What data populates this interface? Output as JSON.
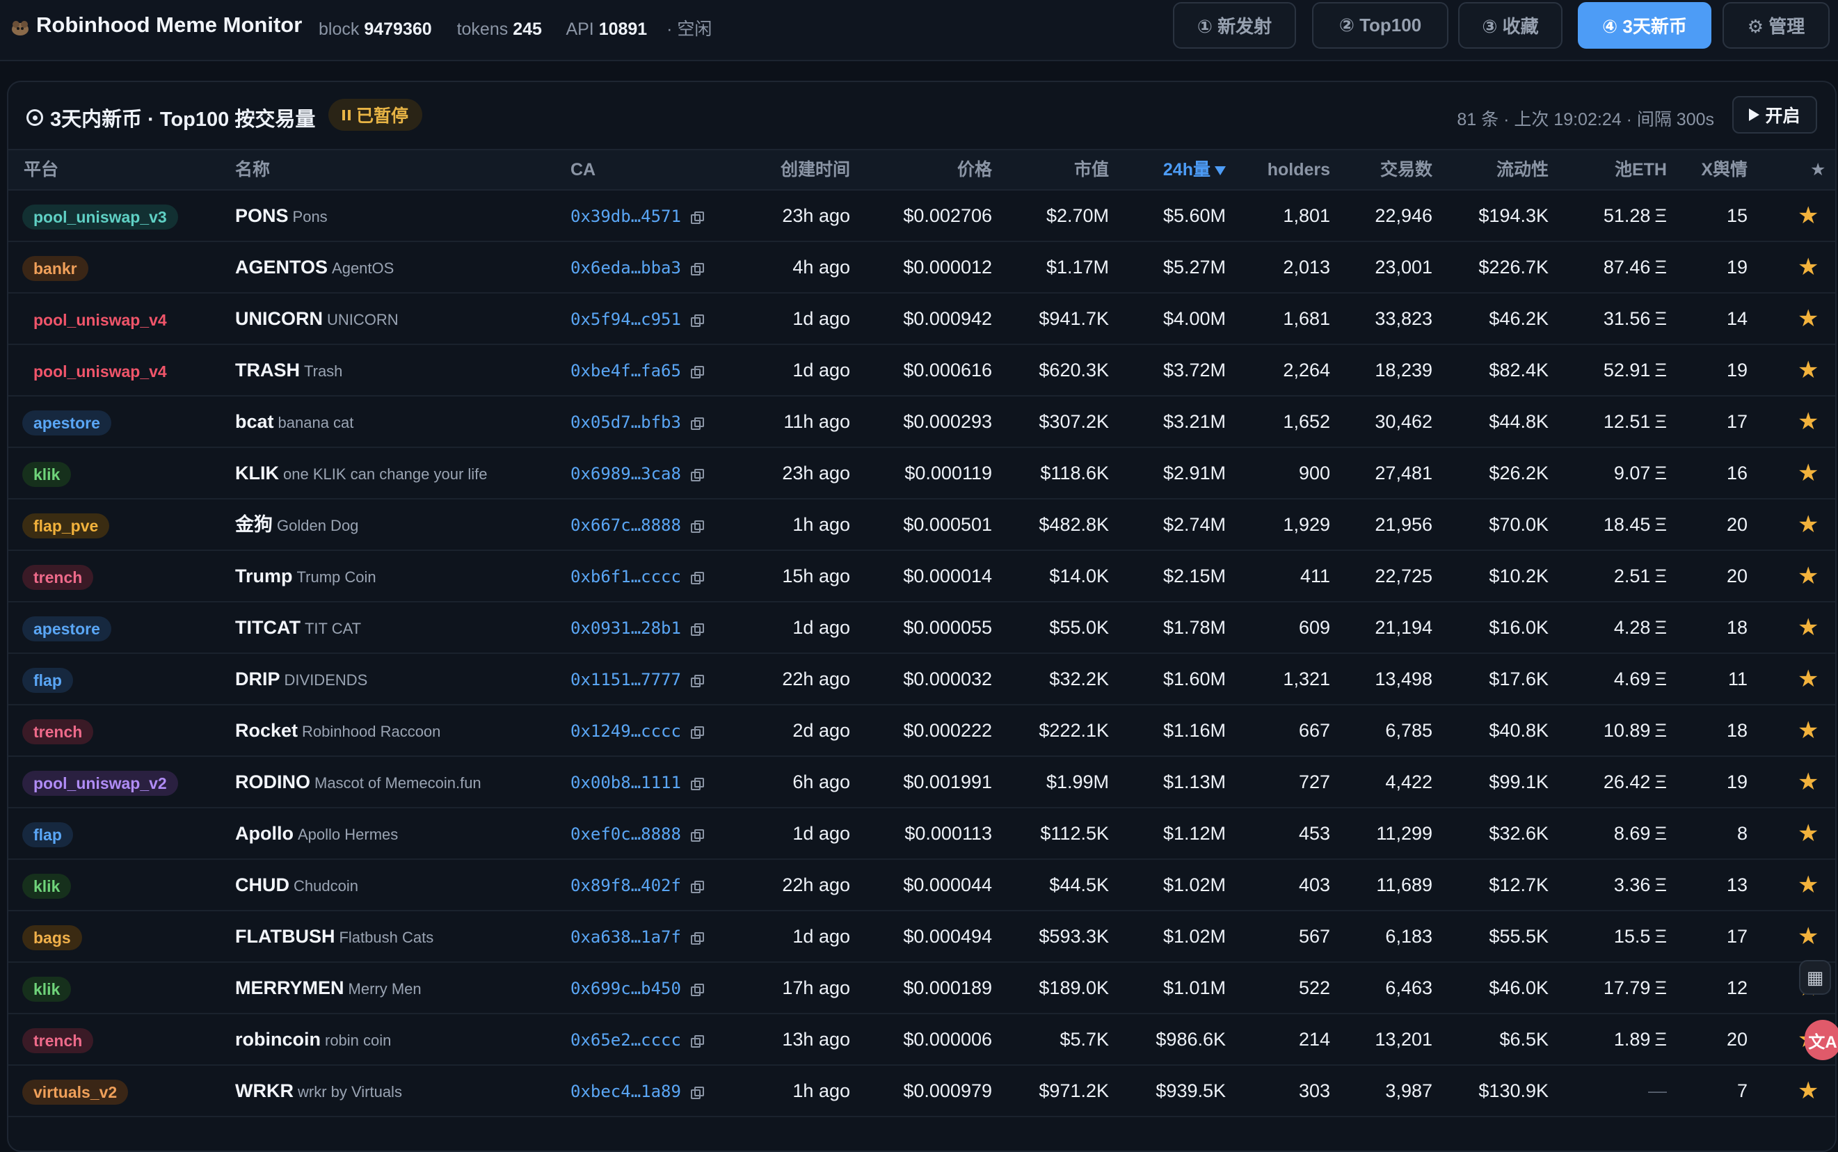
{
  "header": {
    "title": "Robinhood Meme Monitor",
    "block_label": "block",
    "block_value": "9479360",
    "tokens_label": "tokens",
    "tokens_value": "245",
    "api_label": "API",
    "api_value": "10891",
    "status": "· 空闲",
    "tabs": [
      {
        "label": "① 新发射",
        "active": false
      },
      {
        "label": "② Top100",
        "active": false
      },
      {
        "label": "③ 收藏",
        "active": false
      },
      {
        "label": "④ 3天新币",
        "active": true
      },
      {
        "label": "⚙ 管理",
        "active": false
      }
    ]
  },
  "panel": {
    "title": "3天内新币 · Top100 按交易量",
    "paused_label": "已暂停",
    "meta": "81 条 · 上次 19:02:24 · 间隔 300s",
    "start_label": "开启"
  },
  "table": {
    "columns": [
      "平台",
      "名称",
      "CA",
      "创建时间",
      "价格",
      "市值",
      "24h量",
      "holders",
      "交易数",
      "流动性",
      "池ETH",
      "X舆情",
      "★"
    ],
    "sorted_column": "24h量",
    "eth_unit": "Ξ",
    "rows": [
      {
        "platform": "pool_uniswap_v3",
        "symbol": "PONS",
        "name": "Pons",
        "ca": "0x39db…4571",
        "created": "23h ago",
        "price": "$0.002706",
        "mcap": "$2.70M",
        "vol": "$5.60M",
        "holders": "1,801",
        "txs": "22,946",
        "liq": "$194.3K",
        "pool_eth": "51.28",
        "x": "15"
      },
      {
        "platform": "bankr",
        "symbol": "AGENTOS",
        "name": "AgentOS",
        "ca": "0x6eda…bba3",
        "created": "4h ago",
        "price": "$0.000012",
        "mcap": "$1.17M",
        "vol": "$5.27M",
        "holders": "2,013",
        "txs": "23,001",
        "liq": "$226.7K",
        "pool_eth": "87.46",
        "x": "19"
      },
      {
        "platform": "pool_uniswap_v4",
        "symbol": "UNICORN",
        "name": "UNICORN",
        "ca": "0x5f94…c951",
        "created": "1d ago",
        "price": "$0.000942",
        "mcap": "$941.7K",
        "vol": "$4.00M",
        "holders": "1,681",
        "txs": "33,823",
        "liq": "$46.2K",
        "pool_eth": "31.56",
        "x": "14"
      },
      {
        "platform": "pool_uniswap_v4",
        "symbol": "TRASH",
        "name": "Trash",
        "ca": "0xbe4f…fa65",
        "created": "1d ago",
        "price": "$0.000616",
        "mcap": "$620.3K",
        "vol": "$3.72M",
        "holders": "2,264",
        "txs": "18,239",
        "liq": "$82.4K",
        "pool_eth": "52.91",
        "x": "19"
      },
      {
        "platform": "apestore",
        "symbol": "bcat",
        "name": "banana cat",
        "ca": "0x05d7…bfb3",
        "created": "11h ago",
        "price": "$0.000293",
        "mcap": "$307.2K",
        "vol": "$3.21M",
        "holders": "1,652",
        "txs": "30,462",
        "liq": "$44.8K",
        "pool_eth": "12.51",
        "x": "17"
      },
      {
        "platform": "klik",
        "symbol": "KLIK",
        "name": "one KLIK can change your life",
        "ca": "0x6989…3ca8",
        "created": "23h ago",
        "price": "$0.000119",
        "mcap": "$118.6K",
        "vol": "$2.91M",
        "holders": "900",
        "txs": "27,481",
        "liq": "$26.2K",
        "pool_eth": "9.07",
        "x": "16"
      },
      {
        "platform": "flap_pve",
        "symbol": "金狗",
        "name": "Golden Dog",
        "ca": "0x667c…8888",
        "created": "1h ago",
        "price": "$0.000501",
        "mcap": "$482.8K",
        "vol": "$2.74M",
        "holders": "1,929",
        "txs": "21,956",
        "liq": "$70.0K",
        "pool_eth": "18.45",
        "x": "20"
      },
      {
        "platform": "trench",
        "symbol": "Trump",
        "name": "Trump Coin",
        "ca": "0xb6f1…cccc",
        "created": "15h ago",
        "price": "$0.000014",
        "mcap": "$14.0K",
        "vol": "$2.15M",
        "holders": "411",
        "txs": "22,725",
        "liq": "$10.2K",
        "pool_eth": "2.51",
        "x": "20"
      },
      {
        "platform": "apestore",
        "symbol": "TITCAT",
        "name": "TIT CAT",
        "ca": "0x0931…28b1",
        "created": "1d ago",
        "price": "$0.000055",
        "mcap": "$55.0K",
        "vol": "$1.78M",
        "holders": "609",
        "txs": "21,194",
        "liq": "$16.0K",
        "pool_eth": "4.28",
        "x": "18"
      },
      {
        "platform": "flap",
        "symbol": "DRIP",
        "name": "DIVIDENDS",
        "ca": "0x1151…7777",
        "created": "22h ago",
        "price": "$0.000032",
        "mcap": "$32.2K",
        "vol": "$1.60M",
        "holders": "1,321",
        "txs": "13,498",
        "liq": "$17.6K",
        "pool_eth": "4.69",
        "x": "11"
      },
      {
        "platform": "trench",
        "symbol": "Rocket",
        "name": "Robinhood Raccoon",
        "ca": "0x1249…cccc",
        "created": "2d ago",
        "price": "$0.000222",
        "mcap": "$222.1K",
        "vol": "$1.16M",
        "holders": "667",
        "txs": "6,785",
        "liq": "$40.8K",
        "pool_eth": "10.89",
        "x": "18"
      },
      {
        "platform": "pool_uniswap_v2",
        "symbol": "RODINO",
        "name": "Mascot of Memecoin.fun",
        "ca": "0x00b8…1111",
        "created": "6h ago",
        "price": "$0.001991",
        "mcap": "$1.99M",
        "vol": "$1.13M",
        "holders": "727",
        "txs": "4,422",
        "liq": "$99.1K",
        "pool_eth": "26.42",
        "x": "19"
      },
      {
        "platform": "flap",
        "symbol": "Apollo",
        "name": "Apollo Hermes",
        "ca": "0xef0c…8888",
        "created": "1d ago",
        "price": "$0.000113",
        "mcap": "$112.5K",
        "vol": "$1.12M",
        "holders": "453",
        "txs": "11,299",
        "liq": "$32.6K",
        "pool_eth": "8.69",
        "x": "8"
      },
      {
        "platform": "klik",
        "symbol": "CHUD",
        "name": "Chudcoin",
        "ca": "0x89f8…402f",
        "created": "22h ago",
        "price": "$0.000044",
        "mcap": "$44.5K",
        "vol": "$1.02M",
        "holders": "403",
        "txs": "11,689",
        "liq": "$12.7K",
        "pool_eth": "3.36",
        "x": "13"
      },
      {
        "platform": "bags",
        "symbol": "FLATBUSH",
        "name": "Flatbush Cats",
        "ca": "0xa638…1a7f",
        "created": "1d ago",
        "price": "$0.000494",
        "mcap": "$593.3K",
        "vol": "$1.02M",
        "holders": "567",
        "txs": "6,183",
        "liq": "$55.5K",
        "pool_eth": "15.5",
        "x": "17"
      },
      {
        "platform": "klik",
        "symbol": "MERRYMEN",
        "name": "Merry Men",
        "ca": "0x699c…b450",
        "created": "17h ago",
        "price": "$0.000189",
        "mcap": "$189.0K",
        "vol": "$1.01M",
        "holders": "522",
        "txs": "6,463",
        "liq": "$46.0K",
        "pool_eth": "17.79",
        "x": "12"
      },
      {
        "platform": "trench",
        "symbol": "robincoin",
        "name": "robin coin",
        "ca": "0x65e2…cccc",
        "created": "13h ago",
        "price": "$0.000006",
        "mcap": "$5.7K",
        "vol": "$986.6K",
        "holders": "214",
        "txs": "13,201",
        "liq": "$6.5K",
        "pool_eth": "1.89",
        "x": "20"
      },
      {
        "platform": "virtuals_v2",
        "symbol": "WRKR",
        "name": "wrkr by Virtuals",
        "ca": "0xbec4…1a89",
        "created": "1h ago",
        "price": "$0.000979",
        "mcap": "$971.2K",
        "vol": "$939.5K",
        "holders": "303",
        "txs": "3,987",
        "liq": "$130.9K",
        "pool_eth": "—",
        "x": "7"
      }
    ]
  },
  "platform_colors": {
    "pool_uniswap_v3": {
      "fg": "#5fd0c4",
      "bg": "#123032"
    },
    "bankr": {
      "fg": "#f0a05a",
      "bg": "#3a2616"
    },
    "pool_uniswap_v4": {
      "fg": "#f0556a",
      "bg": "transparent"
    },
    "apestore": {
      "fg": "#5aa6f5",
      "bg": "#16283f"
    },
    "klik": {
      "fg": "#6fd37a",
      "bg": "#16301c"
    },
    "flap_pve": {
      "fg": "#f2b23c",
      "bg": "#3a2c12"
    },
    "trench": {
      "fg": "#ee6a8a",
      "bg": "#3a1a26"
    },
    "flap": {
      "fg": "#5aa6f5",
      "bg": "#16283f"
    },
    "pool_uniswap_v2": {
      "fg": "#b08cf5",
      "bg": "#2a2040"
    },
    "bags": {
      "fg": "#f0b04a",
      "bg": "#3a2a12"
    },
    "virtuals_v2": {
      "fg": "#f0a05a",
      "bg": "#3a2616"
    }
  },
  "side_widgets": {
    "translate_label": "文A"
  }
}
